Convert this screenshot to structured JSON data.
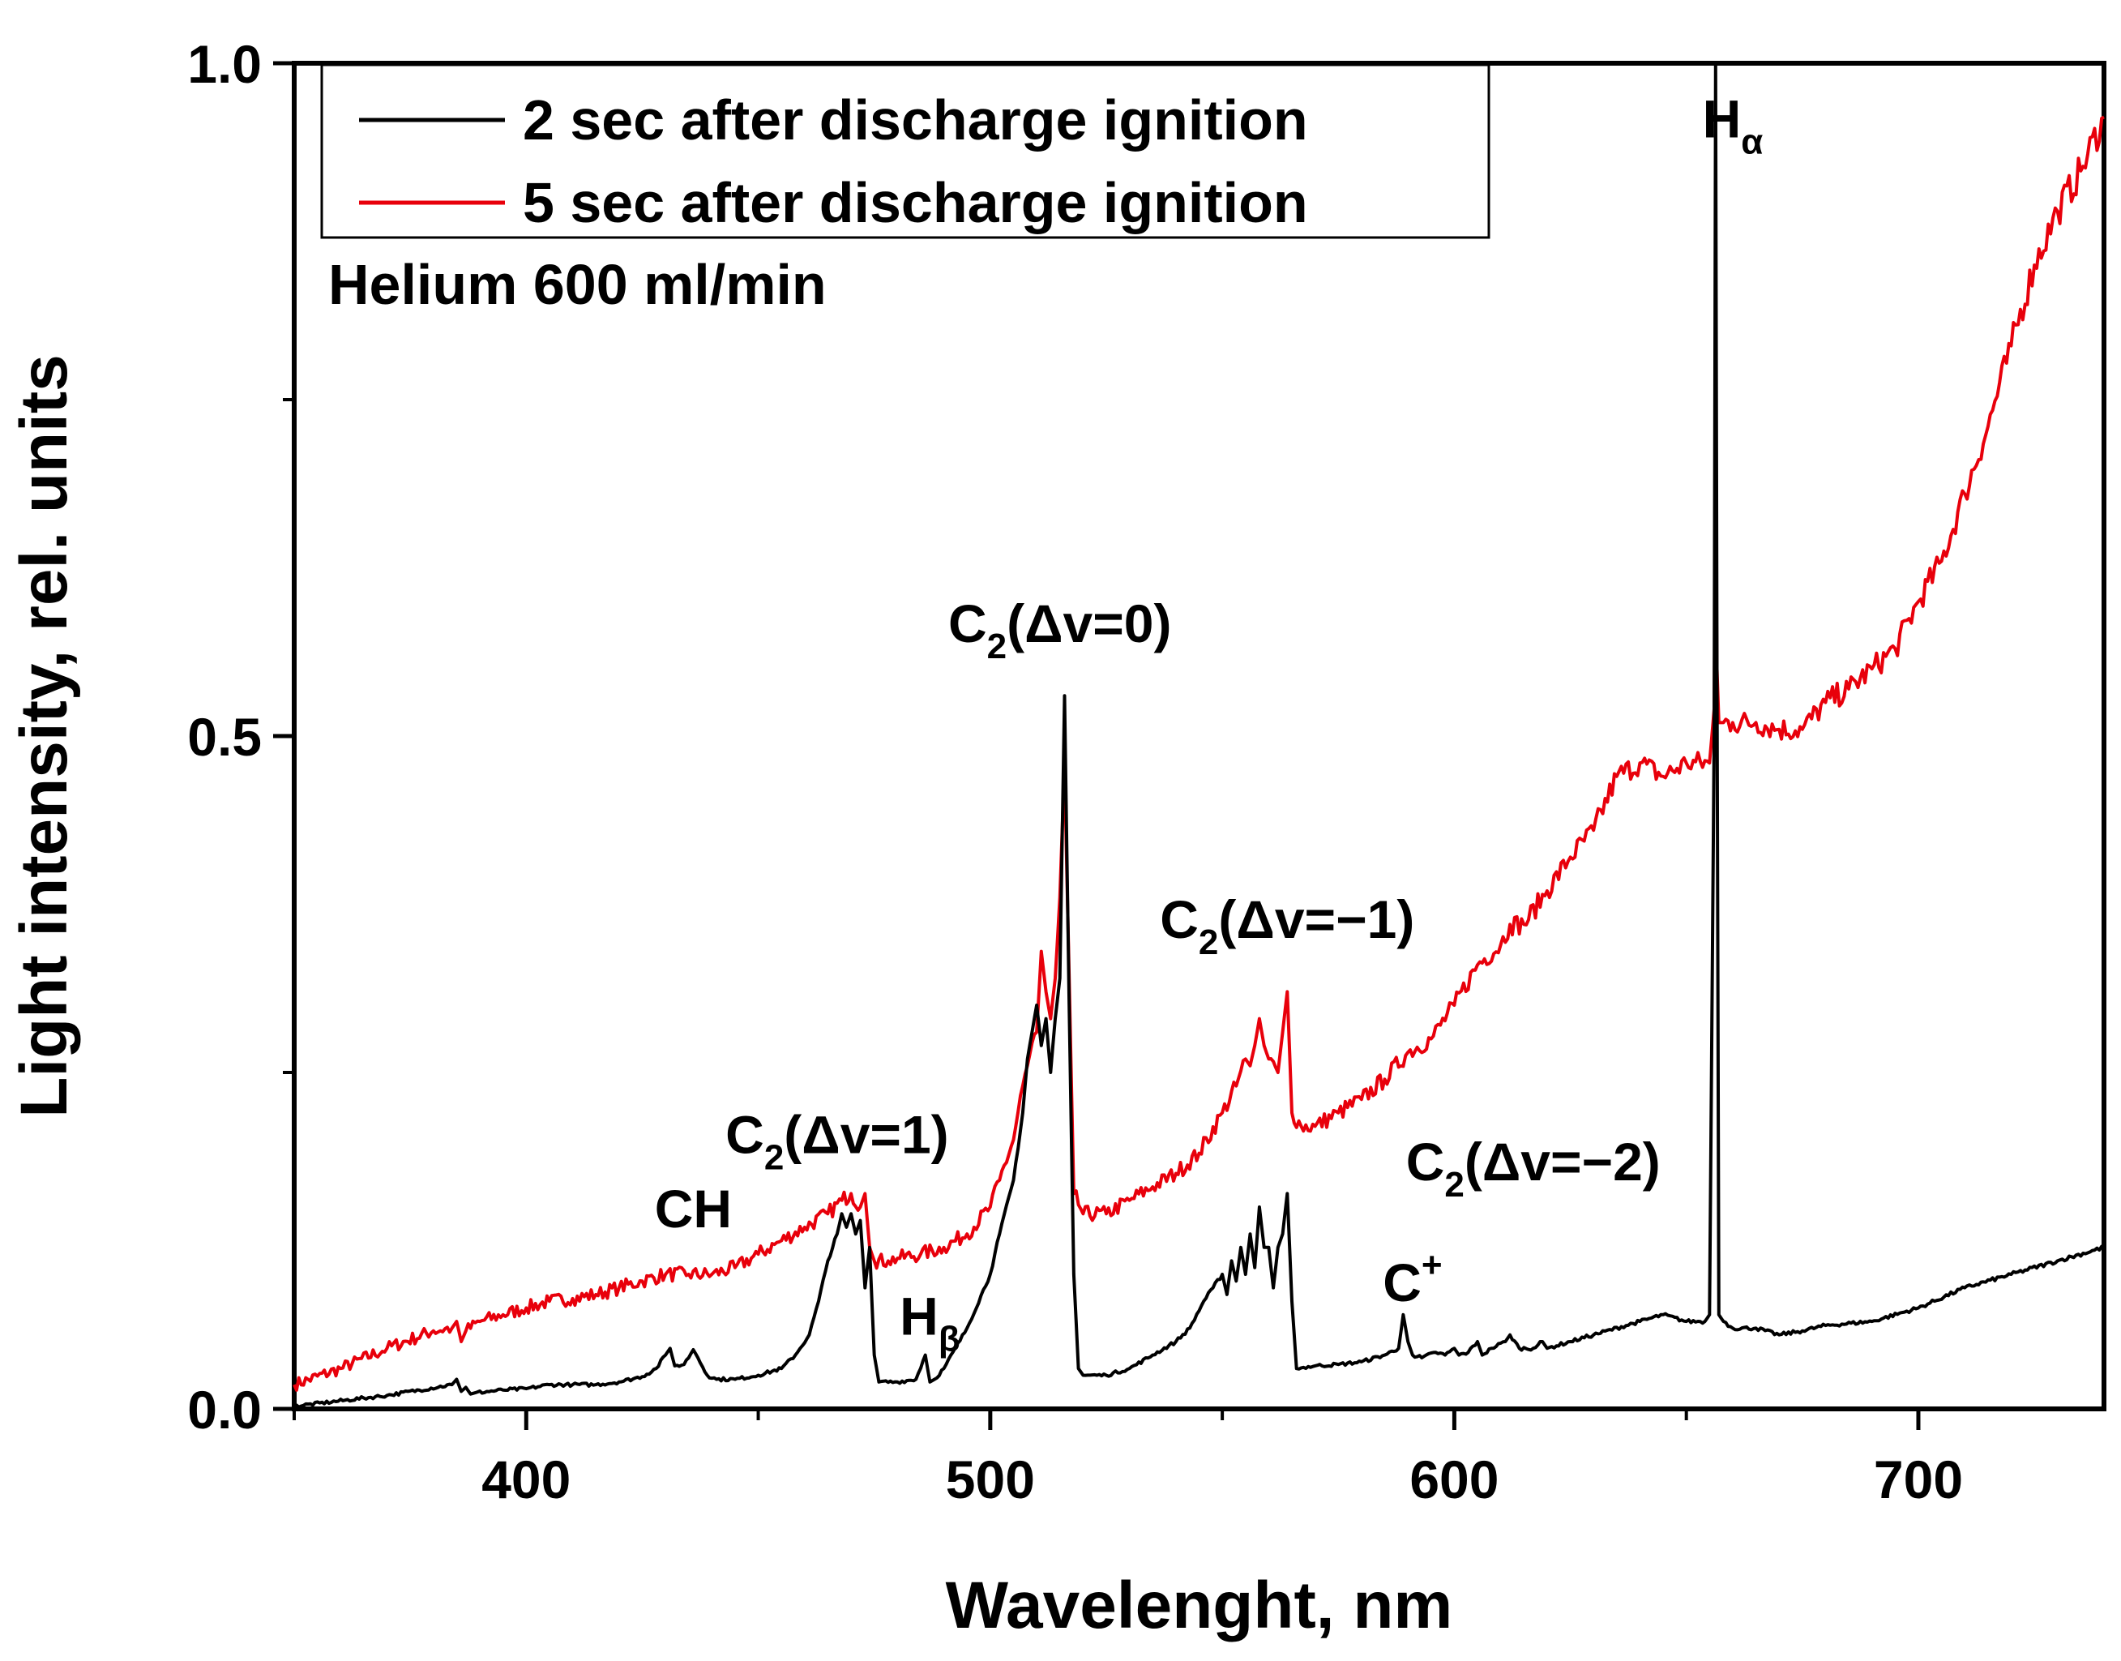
{
  "chart_data": {
    "type": "line",
    "title": "",
    "xlabel": "Wavelenght, nm",
    "ylabel": "Light intensity, rel. units",
    "xlim": [
      350,
      740
    ],
    "ylim": [
      0.0,
      1.0
    ],
    "x_ticks": [
      {
        "value": 400,
        "label": "400"
      },
      {
        "value": 500,
        "label": "500"
      },
      {
        "value": 600,
        "label": "600"
      },
      {
        "value": 700,
        "label": "700"
      }
    ],
    "x_minor_ticks": [
      350,
      450,
      550,
      650
    ],
    "y_ticks": [
      {
        "value": 0.0,
        "label": "0.0"
      },
      {
        "value": 0.5,
        "label": "0.5"
      },
      {
        "value": 1.0,
        "label": "1.0"
      }
    ],
    "y_minor_ticks": [
      0.25,
      0.75
    ],
    "grid": false,
    "legend_position": "top-left",
    "note": "Helium 600 ml/min",
    "series": [
      {
        "name": "2 sec after discharge ignition",
        "color": "#000000",
        "x": [
          350,
          370,
          384,
          385,
          386,
          387,
          388,
          389,
          395,
          400,
          405,
          410,
          415,
          420,
          425,
          428,
          430,
          431,
          432,
          434,
          436,
          437,
          439,
          441,
          445,
          450,
          455,
          458,
          461,
          463,
          465,
          467,
          468,
          469,
          470,
          471,
          472,
          473,
          474,
          475,
          476,
          480,
          484,
          486,
          487,
          488,
          490,
          495,
          500,
          502,
          505,
          507,
          508,
          509,
          510,
          511,
          512,
          513,
          514,
          515,
          516,
          517,
          518,
          519,
          520,
          525,
          530,
          535,
          540,
          543,
          546,
          548,
          550,
          551,
          552,
          553,
          554,
          555,
          556,
          557,
          558,
          559,
          560,
          561,
          562,
          563,
          564,
          565,
          566,
          570,
          575,
          580,
          585,
          588,
          589,
          590,
          591,
          593,
          596,
          598,
          600,
          601,
          603,
          605,
          606,
          608,
          611,
          612,
          614,
          617,
          619,
          620,
          625,
          630,
          640,
          645,
          650,
          654,
          655,
          656,
          656.3,
          656.6,
          657,
          658,
          660,
          665,
          670,
          675,
          680,
          690,
          700,
          710,
          720,
          730,
          740
        ],
        "values": [
          0.002,
          0.01,
          0.018,
          0.022,
          0.013,
          0.016,
          0.011,
          0.012,
          0.014,
          0.015,
          0.018,
          0.018,
          0.018,
          0.02,
          0.024,
          0.03,
          0.04,
          0.045,
          0.032,
          0.033,
          0.044,
          0.038,
          0.025,
          0.022,
          0.022,
          0.025,
          0.03,
          0.04,
          0.055,
          0.08,
          0.11,
          0.13,
          0.145,
          0.135,
          0.145,
          0.13,
          0.14,
          0.09,
          0.12,
          0.04,
          0.02,
          0.02,
          0.022,
          0.04,
          0.02,
          0.022,
          0.03,
          0.06,
          0.1,
          0.13,
          0.17,
          0.22,
          0.26,
          0.28,
          0.3,
          0.27,
          0.29,
          0.25,
          0.29,
          0.32,
          0.53,
          0.3,
          0.1,
          0.03,
          0.025,
          0.025,
          0.03,
          0.04,
          0.05,
          0.06,
          0.08,
          0.09,
          0.1,
          0.085,
          0.11,
          0.095,
          0.12,
          0.1,
          0.13,
          0.105,
          0.15,
          0.12,
          0.12,
          0.09,
          0.12,
          0.13,
          0.16,
          0.08,
          0.03,
          0.032,
          0.033,
          0.035,
          0.04,
          0.045,
          0.07,
          0.05,
          0.04,
          0.038,
          0.042,
          0.04,
          0.045,
          0.04,
          0.042,
          0.05,
          0.04,
          0.045,
          0.05,
          0.055,
          0.045,
          0.045,
          0.05,
          0.045,
          0.05,
          0.055,
          0.065,
          0.07,
          0.065,
          0.065,
          0.07,
          0.5,
          1.0,
          0.55,
          0.07,
          0.065,
          0.06,
          0.06,
          0.055,
          0.058,
          0.062,
          0.065,
          0.075,
          0.09,
          0.1,
          0.11,
          0.12
        ]
      },
      {
        "name": "5 sec after discharge ignition",
        "color": "#e8000b",
        "x": [
          350,
          360,
          370,
          380,
          384,
          385,
          386,
          387,
          390,
          395,
          400,
          405,
          410,
          415,
          420,
          425,
          430,
          435,
          440,
          445,
          450,
          455,
          460,
          465,
          468,
          470,
          472,
          473,
          474,
          475,
          478,
          480,
          485,
          490,
          495,
          500,
          502,
          505,
          507,
          510,
          511,
          512,
          513,
          514,
          515,
          516,
          517,
          518,
          520,
          525,
          530,
          535,
          540,
          545,
          550,
          553,
          555,
          556,
          557,
          558,
          559,
          560,
          562,
          563,
          564,
          565,
          567,
          570,
          575,
          580,
          585,
          590,
          595,
          600,
          605,
          610,
          612,
          615,
          620,
          625,
          630,
          635,
          640,
          645,
          650,
          655,
          656,
          656.3,
          656.6,
          657,
          658,
          660,
          665,
          670,
          675,
          680,
          685,
          690,
          695,
          700,
          705,
          710,
          715,
          720,
          725,
          730,
          735,
          740
        ],
        "values": [
          0.018,
          0.03,
          0.045,
          0.058,
          0.06,
          0.065,
          0.05,
          0.058,
          0.065,
          0.07,
          0.075,
          0.08,
          0.082,
          0.085,
          0.09,
          0.095,
          0.1,
          0.1,
          0.1,
          0.105,
          0.115,
          0.125,
          0.135,
          0.145,
          0.155,
          0.16,
          0.15,
          0.16,
          0.12,
          0.11,
          0.11,
          0.112,
          0.115,
          0.12,
          0.13,
          0.15,
          0.17,
          0.2,
          0.24,
          0.28,
          0.34,
          0.31,
          0.29,
          0.32,
          0.38,
          0.48,
          0.32,
          0.16,
          0.145,
          0.145,
          0.155,
          0.165,
          0.175,
          0.19,
          0.22,
          0.24,
          0.26,
          0.255,
          0.27,
          0.29,
          0.27,
          0.26,
          0.25,
          0.28,
          0.31,
          0.22,
          0.21,
          0.21,
          0.22,
          0.23,
          0.245,
          0.265,
          0.275,
          0.3,
          0.33,
          0.345,
          0.36,
          0.36,
          0.385,
          0.41,
          0.43,
          0.47,
          0.48,
          0.47,
          0.48,
          0.48,
          0.52,
          0.66,
          0.55,
          0.51,
          0.51,
          0.51,
          0.51,
          0.505,
          0.505,
          0.525,
          0.535,
          0.55,
          0.565,
          0.6,
          0.63,
          0.68,
          0.73,
          0.79,
          0.85,
          0.89,
          0.92,
          0.96
        ]
      }
    ],
    "annotations": [
      {
        "x": 436,
        "y": 0.135,
        "text": "CH",
        "sub": ""
      },
      {
        "x": 467,
        "y": 0.19,
        "text": "C",
        "sub": "2",
        "tail": "(Δv=1)"
      },
      {
        "x": 487,
        "y": 0.055,
        "text": "H",
        "sub": "β",
        "tail": ""
      },
      {
        "x": 515,
        "y": 0.57,
        "text": "C",
        "sub": "2",
        "tail": "(Δv=0)"
      },
      {
        "x": 564,
        "y": 0.35,
        "text": "C",
        "sub": "2",
        "tail": "(Δv=−1)"
      },
      {
        "x": 617,
        "y": 0.17,
        "text": "C",
        "sub": "2",
        "tail": "(Δv=−2)"
      },
      {
        "x": 591,
        "y": 0.08,
        "text": "C",
        "sup": "+",
        "tail": ""
      },
      {
        "x": 660,
        "y": 0.945,
        "text": "H",
        "sub": "α",
        "tail": ""
      }
    ]
  }
}
